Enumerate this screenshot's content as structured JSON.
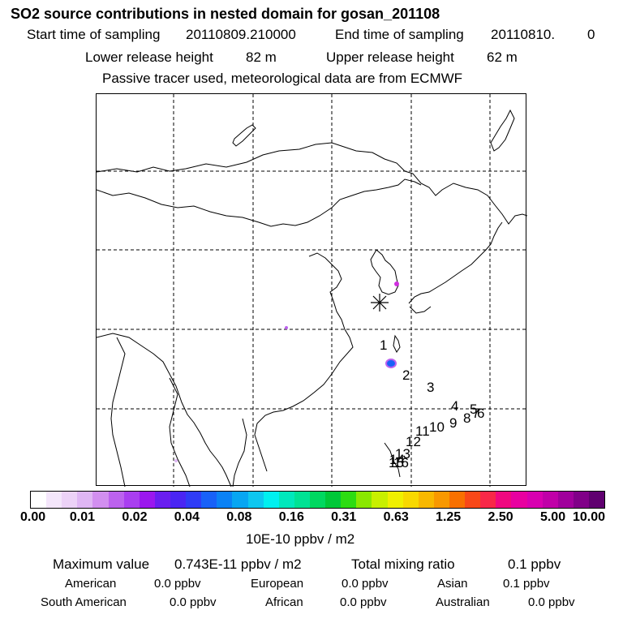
{
  "header": {
    "title": "SO2 source contributions in nested domain for gosan_201108",
    "start_label": "Start time of sampling",
    "start_value": "20110809.210000",
    "end_label": "End time of sampling",
    "end_value": "20110810.",
    "end_extra": "0",
    "lower_label": "Lower release height",
    "lower_value": "82 m",
    "upper_label": "Upper release height",
    "upper_value": "62 m",
    "note": "Passive tracer used, meteorological data are from ECMWF"
  },
  "map": {
    "trajectory_labels": [
      "1",
      "2",
      "3",
      "4",
      "5",
      "6",
      "7",
      "8",
      "9",
      "10",
      "11",
      "12",
      "13",
      "14",
      "15",
      "16"
    ],
    "source_marker": "receptor-star"
  },
  "colorbar": {
    "colors": [
      "#ffffff",
      "#f4e6fb",
      "#ecd2f7",
      "#dfb6f4",
      "#d28ff0",
      "#bc62ee",
      "#a93ef0",
      "#9b17ee",
      "#6a1ef0",
      "#4a25f3",
      "#2f3cf6",
      "#1861f8",
      "#0b82f5",
      "#08a6f2",
      "#0ec7f0",
      "#00f0f0",
      "#00e8bc",
      "#00e294",
      "#00d860",
      "#00c838",
      "#2ddc12",
      "#8ae800",
      "#c8f000",
      "#f0f000",
      "#f8d800",
      "#f8b800",
      "#f89800",
      "#f87000",
      "#f84818",
      "#f82848",
      "#f00880",
      "#e800a0",
      "#d800b0",
      "#c000a8",
      "#a0009c",
      "#800088",
      "#600070"
    ],
    "tick_labels": [
      "0.00",
      "0.01",
      "0.02",
      "0.04",
      "0.08",
      "0.16",
      "0.31",
      "0.63",
      "1.25",
      "2.50",
      "5.00",
      "10.00"
    ],
    "unit": "10E-10 ppbv / m2"
  },
  "summary": {
    "max_label": "Maximum value",
    "max_value": "0.743E-11 ppbv / m2",
    "total_label": "Total mixing ratio",
    "total_value": "0.1 ppbv",
    "regions": [
      {
        "name": "American",
        "value": "0.0 ppbv"
      },
      {
        "name": "European",
        "value": "0.0 ppbv"
      },
      {
        "name": "Asian",
        "value": "0.1 ppbv"
      },
      {
        "name": "South American",
        "value": "0.0 ppbv"
      },
      {
        "name": "African",
        "value": "0.0 ppbv"
      },
      {
        "name": "Australian",
        "value": "0.0 ppbv"
      }
    ]
  }
}
